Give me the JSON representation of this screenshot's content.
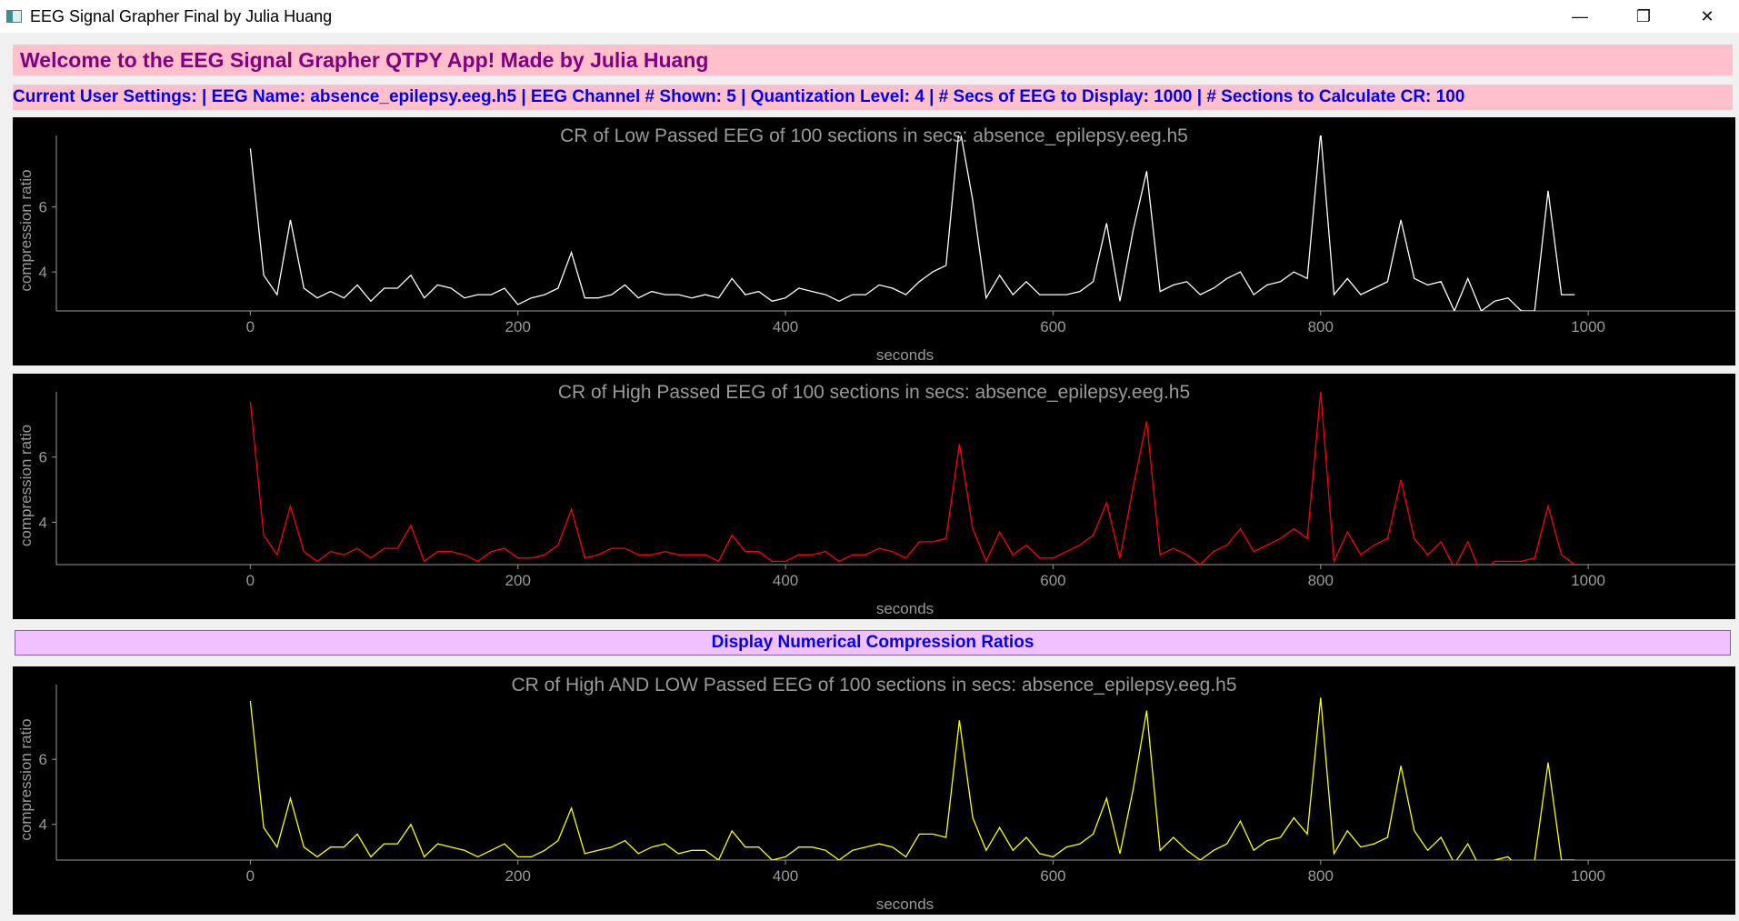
{
  "window": {
    "title": "EEG Signal Grapher Final by Julia Huang",
    "controls": [
      "—",
      "❐",
      "✕"
    ]
  },
  "banner": "Welcome to the EEG Signal Grapher QTPY App! Made by Julia Huang",
  "settings": "Current User Settings: | EEG Name: absence_epilepsy.eeg.h5 | EEG Channel # Shown: 5 | Quantization Level: 4 | # Secs of EEG to Display: 1000 | # Sections to Calculate CR: 100",
  "display_button": "Display Numerical Compression Ratios",
  "colors": {
    "low": "#ffffff",
    "high": "#ff0000",
    "both": "#ffff00",
    "plot_bg": "#000000",
    "banner_bg": "#ffc0cb",
    "button_bg": "#f0c0ff"
  },
  "chart_data": [
    {
      "type": "line",
      "title": "CR of Low Passed EEG of 100 sections in secs: absence_epilepsy.eeg.h5",
      "xlabel": "seconds",
      "ylabel": "compression ratio",
      "xlim": [
        -145,
        1110
      ],
      "ylim": [
        2.8,
        8.2
      ],
      "xticks": [
        0,
        200,
        400,
        600,
        800,
        1000
      ],
      "yticks": [
        4,
        6
      ],
      "color": "#ffffff",
      "x": [
        0,
        10,
        20,
        30,
        40,
        50,
        60,
        70,
        80,
        90,
        100,
        110,
        120,
        130,
        140,
        150,
        160,
        170,
        180,
        190,
        200,
        210,
        220,
        230,
        240,
        250,
        260,
        270,
        280,
        290,
        300,
        310,
        320,
        330,
        340,
        350,
        360,
        370,
        380,
        390,
        400,
        410,
        420,
        430,
        440,
        450,
        460,
        470,
        480,
        490,
        500,
        510,
        520,
        530,
        540,
        550,
        560,
        570,
        580,
        590,
        600,
        610,
        620,
        630,
        640,
        650,
        660,
        670,
        680,
        690,
        700,
        710,
        720,
        730,
        740,
        750,
        760,
        770,
        780,
        790,
        800,
        810,
        820,
        830,
        840,
        850,
        860,
        870,
        880,
        890,
        900,
        910,
        920,
        930,
        940,
        950,
        960,
        970,
        980,
        990
      ],
      "y": [
        7.8,
        3.9,
        3.3,
        5.6,
        3.5,
        3.2,
        3.4,
        3.2,
        3.6,
        3.1,
        3.5,
        3.5,
        3.9,
        3.2,
        3.6,
        3.5,
        3.2,
        3.3,
        3.3,
        3.5,
        3.0,
        3.2,
        3.3,
        3.5,
        4.6,
        3.2,
        3.2,
        3.3,
        3.6,
        3.2,
        3.4,
        3.3,
        3.3,
        3.2,
        3.3,
        3.2,
        3.8,
        3.3,
        3.4,
        3.1,
        3.2,
        3.5,
        3.4,
        3.3,
        3.1,
        3.3,
        3.3,
        3.6,
        3.5,
        3.3,
        3.7,
        4.0,
        4.2,
        8.5,
        6.2,
        3.2,
        3.9,
        3.3,
        3.7,
        3.3,
        3.3,
        3.3,
        3.4,
        3.7,
        5.5,
        3.1,
        5.3,
        7.1,
        3.4,
        3.6,
        3.7,
        3.3,
        3.5,
        3.8,
        4.0,
        3.3,
        3.6,
        3.7,
        4.0,
        3.8,
        8.3,
        3.3,
        3.8,
        3.3,
        3.5,
        3.7,
        5.6,
        3.8,
        3.6,
        3.7,
        2.8,
        3.8,
        2.8,
        3.1,
        3.2,
        2.8,
        2.8,
        6.5,
        3.3,
        3.3
      ]
    },
    {
      "type": "line",
      "title": "CR of High Passed EEG of 100 sections in secs: absence_epilepsy.eeg.h5",
      "xlabel": "seconds",
      "ylabel": "compression ratio",
      "xlim": [
        -145,
        1110
      ],
      "ylim": [
        2.7,
        8.0
      ],
      "xticks": [
        0,
        200,
        400,
        600,
        800,
        1000
      ],
      "yticks": [
        4,
        6
      ],
      "color": "#ff0000",
      "x": [
        0,
        10,
        20,
        30,
        40,
        50,
        60,
        70,
        80,
        90,
        100,
        110,
        120,
        130,
        140,
        150,
        160,
        170,
        180,
        190,
        200,
        210,
        220,
        230,
        240,
        250,
        260,
        270,
        280,
        290,
        300,
        310,
        320,
        330,
        340,
        350,
        360,
        370,
        380,
        390,
        400,
        410,
        420,
        430,
        440,
        450,
        460,
        470,
        480,
        490,
        500,
        510,
        520,
        530,
        540,
        550,
        560,
        570,
        580,
        590,
        600,
        610,
        620,
        630,
        640,
        650,
        660,
        670,
        680,
        690,
        700,
        710,
        720,
        730,
        740,
        750,
        760,
        770,
        780,
        790,
        800,
        810,
        820,
        830,
        840,
        850,
        860,
        870,
        880,
        890,
        900,
        910,
        920,
        930,
        940,
        950,
        960,
        970,
        980,
        990
      ],
      "y": [
        7.7,
        3.6,
        3.0,
        4.5,
        3.1,
        2.8,
        3.1,
        3.0,
        3.2,
        2.9,
        3.2,
        3.2,
        3.9,
        2.8,
        3.1,
        3.1,
        3.0,
        2.8,
        3.1,
        3.2,
        2.9,
        2.9,
        3.0,
        3.3,
        4.4,
        2.9,
        3.0,
        3.2,
        3.2,
        3.0,
        3.0,
        3.1,
        3.0,
        3.0,
        3.0,
        2.8,
        3.6,
        3.1,
        3.1,
        2.8,
        2.8,
        3.0,
        3.0,
        3.1,
        2.8,
        3.0,
        3.0,
        3.2,
        3.1,
        2.9,
        3.4,
        3.4,
        3.5,
        6.4,
        3.8,
        2.8,
        3.7,
        3.0,
        3.3,
        2.9,
        2.9,
        3.1,
        3.3,
        3.6,
        4.6,
        2.9,
        5.1,
        7.1,
        3.0,
        3.2,
        3.0,
        2.7,
        3.1,
        3.3,
        3.8,
        3.1,
        3.3,
        3.5,
        3.8,
        3.5,
        8.0,
        2.8,
        3.7,
        3.0,
        3.3,
        3.5,
        5.3,
        3.5,
        3.0,
        3.4,
        2.6,
        3.4,
        2.4,
        2.8,
        2.8,
        2.8,
        2.9,
        4.5,
        3.0,
        2.7
      ]
    },
    {
      "type": "line",
      "title": "CR of High AND LOW Passed EEG of 100 sections in secs: absence_epilepsy.eeg.h5",
      "xlabel": "seconds",
      "ylabel": "compression ratio",
      "xlim": [
        -145,
        1110
      ],
      "ylim": [
        2.9,
        8.3
      ],
      "xticks": [
        0,
        200,
        400,
        600,
        800,
        1000
      ],
      "yticks": [
        4,
        6
      ],
      "color": "#ffff00",
      "x": [
        0,
        10,
        20,
        30,
        40,
        50,
        60,
        70,
        80,
        90,
        100,
        110,
        120,
        130,
        140,
        150,
        160,
        170,
        180,
        190,
        200,
        210,
        220,
        230,
        240,
        250,
        260,
        270,
        280,
        290,
        300,
        310,
        320,
        330,
        340,
        350,
        360,
        370,
        380,
        390,
        400,
        410,
        420,
        430,
        440,
        450,
        460,
        470,
        480,
        490,
        500,
        510,
        520,
        530,
        540,
        550,
        560,
        570,
        580,
        590,
        600,
        610,
        620,
        630,
        640,
        650,
        660,
        670,
        680,
        690,
        700,
        710,
        720,
        730,
        740,
        750,
        760,
        770,
        780,
        790,
        800,
        810,
        820,
        830,
        840,
        850,
        860,
        870,
        880,
        890,
        900,
        910,
        920,
        930,
        940,
        950,
        960,
        970,
        980,
        990
      ],
      "y": [
        7.8,
        3.9,
        3.3,
        4.8,
        3.3,
        3.0,
        3.3,
        3.3,
        3.7,
        3.0,
        3.4,
        3.4,
        4.0,
        3.0,
        3.4,
        3.3,
        3.2,
        3.0,
        3.2,
        3.4,
        3.0,
        3.0,
        3.2,
        3.5,
        4.5,
        3.1,
        3.2,
        3.3,
        3.5,
        3.1,
        3.3,
        3.4,
        3.1,
        3.2,
        3.2,
        2.9,
        3.8,
        3.3,
        3.3,
        2.9,
        3.0,
        3.3,
        3.3,
        3.2,
        2.9,
        3.2,
        3.3,
        3.4,
        3.3,
        3.0,
        3.7,
        3.7,
        3.6,
        7.2,
        4.2,
        3.2,
        3.9,
        3.2,
        3.6,
        3.1,
        3.0,
        3.3,
        3.4,
        3.7,
        4.8,
        3.1,
        5.1,
        7.5,
        3.2,
        3.6,
        3.2,
        2.9,
        3.2,
        3.4,
        4.1,
        3.2,
        3.5,
        3.6,
        4.2,
        3.7,
        7.9,
        3.1,
        3.8,
        3.3,
        3.4,
        3.6,
        5.8,
        3.8,
        3.2,
        3.6,
        2.8,
        3.4,
        2.6,
        2.9,
        3.0,
        2.6,
        2.9,
        5.9,
        2.9,
        2.9
      ]
    }
  ]
}
